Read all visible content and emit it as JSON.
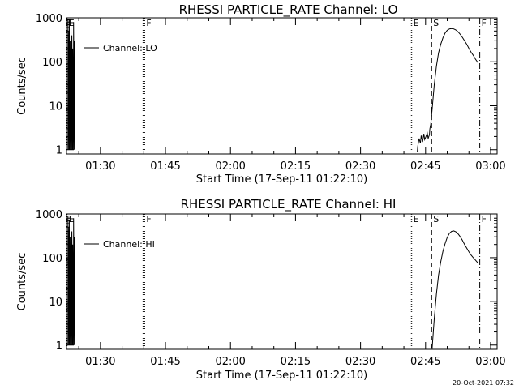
{
  "timestamp": "20-Oct-2021 07:32",
  "chart_data": [
    {
      "type": "line",
      "title": "RHESSI PARTICLE_RATE Channel: LO",
      "xlabel": "Start Time (17-Sep-11 01:22:10)",
      "ylabel": "Counts/sec",
      "yscale": "log",
      "ylim": [
        0.8,
        1000
      ],
      "xlim_minutes": [
        82.17,
        181.5
      ],
      "yticks": [
        {
          "v": 1,
          "label": "1"
        },
        {
          "v": 10,
          "label": "10"
        },
        {
          "v": 100,
          "label": "100"
        },
        {
          "v": 1000,
          "label": "1000"
        }
      ],
      "xticks": [
        {
          "m": 90,
          "label": "01:30"
        },
        {
          "m": 105,
          "label": "01:45"
        },
        {
          "m": 120,
          "label": "02:00"
        },
        {
          "m": 135,
          "label": "02:15"
        },
        {
          "m": 150,
          "label": "02:30"
        },
        {
          "m": 165,
          "label": "02:45"
        },
        {
          "m": 180,
          "label": "03:00"
        }
      ],
      "legend": {
        "label": "Channel: LO",
        "position": "top-left"
      },
      "markers": [
        {
          "label": "E",
          "m": 82.3,
          "style": "dotted"
        },
        {
          "label": "F",
          "m": 100.2,
          "style": "dotted"
        },
        {
          "label": "E",
          "m": 161.8,
          "style": "dotted"
        },
        {
          "label": "S",
          "m": 166.4,
          "style": "dashed"
        },
        {
          "label": "F",
          "m": 177.5,
          "style": "dashdot"
        }
      ],
      "series": [
        {
          "name": "Channel: LO",
          "segments": [
            {
              "x": [
                82.5,
                82.5,
                82.6,
                82.6,
                82.8,
                82.8,
                83.0,
                83.0,
                83.2,
                83.2,
                83.4,
                83.4,
                83.6,
                83.6,
                83.8,
                83.8,
                84.0,
                84.0
              ],
              "y": [
                1,
                900,
                1,
                500,
                1,
                900,
                1,
                300,
                1,
                700,
                1,
                400,
                1,
                200,
                1,
                800,
                1,
                300
              ]
            },
            {
              "x": [
                163.1,
                163.2,
                163.5,
                163.8,
                164.0,
                164.3,
                164.6,
                164.8,
                165.1,
                165.4,
                165.6,
                165.9,
                166.0,
                166.2,
                166.5,
                167.0,
                167.5,
                168.0,
                168.5,
                169.0,
                169.5,
                170.0,
                170.5,
                171.0,
                171.5,
                172.0,
                172.5,
                173.0,
                173.5,
                174.0,
                174.5,
                175.0,
                175.5,
                176.0,
                176.5,
                177.1
              ],
              "y": [
                0.9,
                1.2,
                1.8,
                1.4,
                2.1,
                1.5,
                2.3,
                1.7,
                2.0,
                2.4,
                1.8,
                2.2,
                3.0,
                3.8,
                8.0,
                30,
                80,
                160,
                250,
                350,
                450,
                520,
                560,
                570,
                560,
                530,
                480,
                420,
                360,
                300,
                250,
                200,
                165,
                140,
                115,
                95
              ]
            }
          ]
        }
      ]
    },
    {
      "type": "line",
      "title": "RHESSI PARTICLE_RATE Channel: HI",
      "xlabel": "Start Time (17-Sep-11 01:22:10)",
      "ylabel": "Counts/sec",
      "yscale": "log",
      "ylim": [
        0.8,
        1000
      ],
      "xlim_minutes": [
        82.17,
        181.5
      ],
      "yticks": [
        {
          "v": 1,
          "label": "1"
        },
        {
          "v": 10,
          "label": "10"
        },
        {
          "v": 100,
          "label": "100"
        },
        {
          "v": 1000,
          "label": "1000"
        }
      ],
      "xticks": [
        {
          "m": 90,
          "label": "01:30"
        },
        {
          "m": 105,
          "label": "01:45"
        },
        {
          "m": 120,
          "label": "02:00"
        },
        {
          "m": 135,
          "label": "02:15"
        },
        {
          "m": 150,
          "label": "02:30"
        },
        {
          "m": 165,
          "label": "02:45"
        },
        {
          "m": 180,
          "label": "03:00"
        }
      ],
      "legend": {
        "label": "Channel: HI",
        "position": "top-left"
      },
      "markers": [
        {
          "label": "E",
          "m": 82.3,
          "style": "dotted"
        },
        {
          "label": "F",
          "m": 100.2,
          "style": "dotted"
        },
        {
          "label": "E",
          "m": 161.8,
          "style": "dotted"
        },
        {
          "label": "S",
          "m": 166.4,
          "style": "dashed"
        },
        {
          "label": "F",
          "m": 177.5,
          "style": "dashdot"
        }
      ],
      "series": [
        {
          "name": "Channel: HI",
          "segments": [
            {
              "x": [
                82.5,
                82.5,
                82.6,
                82.6,
                82.8,
                82.8,
                83.0,
                83.0,
                83.2,
                83.2,
                83.4,
                83.4,
                83.6,
                83.6,
                83.8,
                83.8,
                84.0,
                84.0
              ],
              "y": [
                1,
                900,
                1,
                500,
                1,
                700,
                1,
                300,
                1,
                600,
                1,
                400,
                1,
                200,
                1,
                800,
                1,
                300
              ]
            },
            {
              "x": [
                166.5,
                167.0,
                167.5,
                168.0,
                168.5,
                169.0,
                169.5,
                170.0,
                170.5,
                171.0,
                171.5,
                172.0,
                172.5,
                173.0,
                173.5,
                174.0,
                174.5,
                175.0,
                175.5,
                176.0,
                176.5,
                177.1
              ],
              "y": [
                0.8,
                4,
                15,
                40,
                80,
                140,
                210,
                290,
                360,
                400,
                410,
                390,
                350,
                300,
                250,
                200,
                165,
                135,
                115,
                100,
                88,
                75
              ]
            }
          ]
        }
      ]
    }
  ]
}
